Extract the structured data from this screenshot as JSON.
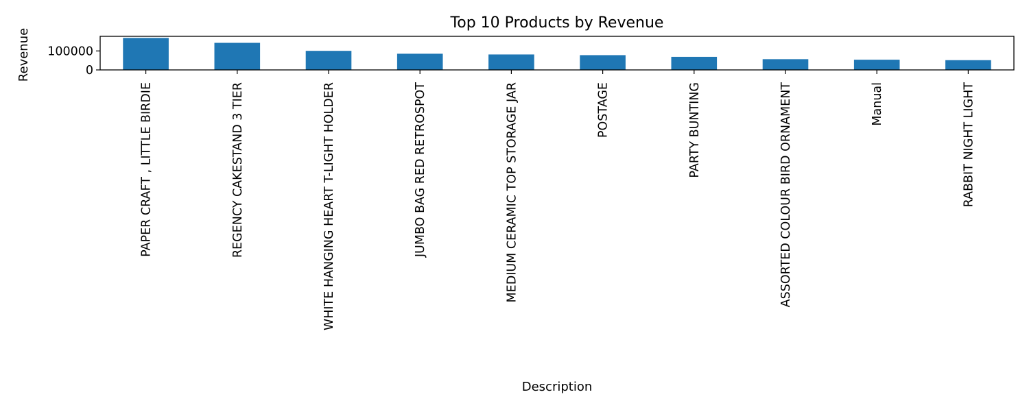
{
  "chart_data": {
    "type": "bar",
    "title": "Top 10 Products by Revenue",
    "xlabel": "Description",
    "ylabel": "Revenue",
    "categories": [
      "PAPER CRAFT , LITTLE BIRDIE",
      "REGENCY CAKESTAND 3 TIER",
      "WHITE HANGING HEART T-LIGHT HOLDER",
      "JUMBO BAG RED RETROSPOT",
      "MEDIUM CERAMIC TOP STORAGE JAR",
      "POSTAGE",
      "PARTY BUNTING",
      "ASSORTED COLOUR BIRD ORNAMENT",
      "Manual",
      "RABBIT NIGHT LIGHT"
    ],
    "values": [
      168469.6,
      142592.95,
      100448.15,
      85220.78,
      81416.73,
      77803.96,
      68844.33,
      56580.34,
      53779.93,
      51346.2
    ],
    "ylim": [
      0,
      176893
    ],
    "yticks": [
      0,
      100000
    ],
    "ytick_labels": [
      "0",
      "100000"
    ],
    "grid": false,
    "legend": "none",
    "bar_color": "#1f77b4"
  }
}
